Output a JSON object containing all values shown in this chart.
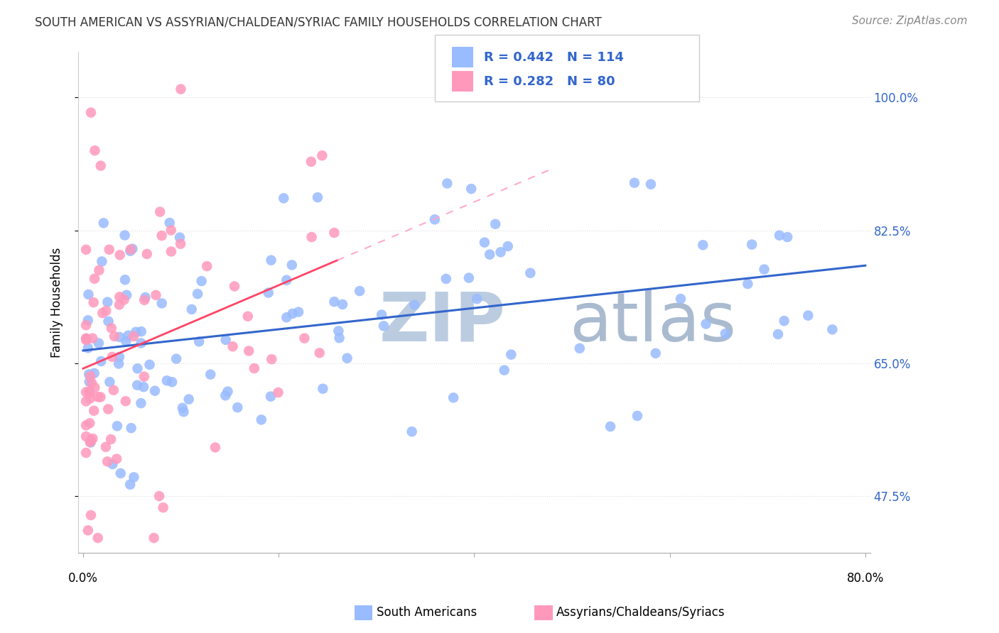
{
  "title": "SOUTH AMERICAN VS ASSYRIAN/CHALDEAN/SYRIAC FAMILY HOUSEHOLDS CORRELATION CHART",
  "source": "Source: ZipAtlas.com",
  "ylabel": "Family Households",
  "ytick_labels": [
    "47.5%",
    "65.0%",
    "82.5%",
    "100.0%"
  ],
  "ytick_values": [
    0.475,
    0.65,
    0.825,
    1.0
  ],
  "xlim": [
    -0.005,
    0.805
  ],
  "ylim": [
    0.4,
    1.06
  ],
  "blue_color": "#99BBFF",
  "blue_line_color": "#3366CC",
  "pink_color": "#FF99BB",
  "pink_line_color": "#FF4466",
  "pink_dash_color": "#FFAACC",
  "watermark_zip_color": "#CCDDEE",
  "watermark_atlas_color": "#AACCEE",
  "legend_blue_R": "0.442",
  "legend_blue_N": "114",
  "legend_pink_R": "0.282",
  "legend_pink_N": "80",
  "legend_text_color": "#3366CC",
  "right_tick_color": "#3366CC",
  "grid_color": "#DDDDDD",
  "title_fontsize": 12,
  "source_fontsize": 11,
  "ytick_fontsize": 12,
  "ylabel_fontsize": 12
}
